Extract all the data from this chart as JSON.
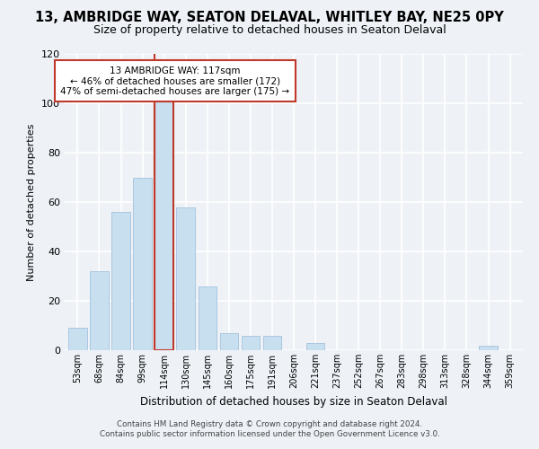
{
  "title": "13, AMBRIDGE WAY, SEATON DELAVAL, WHITLEY BAY, NE25 0PY",
  "subtitle": "Size of property relative to detached houses in Seaton Delaval",
  "xlabel": "Distribution of detached houses by size in Seaton Delaval",
  "ylabel": "Number of detached properties",
  "bar_labels": [
    "53sqm",
    "68sqm",
    "84sqm",
    "99sqm",
    "114sqm",
    "130sqm",
    "145sqm",
    "160sqm",
    "175sqm",
    "191sqm",
    "206sqm",
    "221sqm",
    "237sqm",
    "252sqm",
    "267sqm",
    "283sqm",
    "298sqm",
    "313sqm",
    "328sqm",
    "344sqm",
    "359sqm"
  ],
  "bar_values": [
    9,
    32,
    56,
    70,
    101,
    58,
    26,
    7,
    6,
    6,
    0,
    3,
    0,
    0,
    0,
    0,
    0,
    0,
    0,
    2,
    0
  ],
  "bar_color": "#c8dff0",
  "bar_edge_color": "#aac8e0",
  "highlight_bar_index": 4,
  "highlight_bar_edge_color": "#c0392b",
  "vline_color": "#c0392b",
  "annotation_line1": "13 AMBRIDGE WAY: 117sqm",
  "annotation_line2": "← 46% of detached houses are smaller (172)",
  "annotation_line3": "47% of semi-detached houses are larger (175) →",
  "annotation_box_color": "white",
  "annotation_box_edge_color": "#c0392b",
  "ylim": [
    0,
    120
  ],
  "yticks": [
    0,
    20,
    40,
    60,
    80,
    100,
    120
  ],
  "footer_line1": "Contains HM Land Registry data © Crown copyright and database right 2024.",
  "footer_line2": "Contains public sector information licensed under the Open Government Licence v3.0.",
  "bg_color": "#eef2f7",
  "grid_color": "white",
  "title_fontsize": 10.5,
  "subtitle_fontsize": 9
}
